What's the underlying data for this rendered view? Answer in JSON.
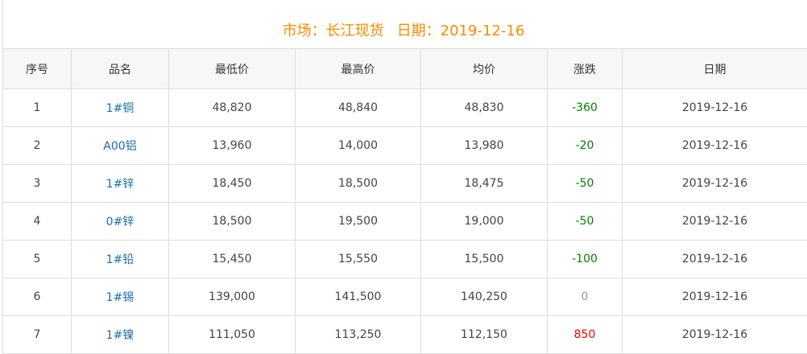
{
  "title": {
    "market": "市场：长江现货",
    "date": "日期：2019-12-16"
  },
  "headers": [
    "序号",
    "品名",
    "最低价",
    "最高价",
    "均价",
    "涨跌",
    "日期"
  ],
  "colors": {
    "title": "#ff8a00",
    "name": "#1a6fa8",
    "down": "#008000",
    "up": "#ff0000",
    "flat": "#999999"
  },
  "rows": [
    {
      "no": "1",
      "name": "1#铜",
      "low": "48,820",
      "high": "48,840",
      "avg": "48,830",
      "change": "-360",
      "date": "2019-12-16"
    },
    {
      "no": "2",
      "name": "A00铝",
      "low": "13,960",
      "high": "14,000",
      "avg": "13,980",
      "change": "-20",
      "date": "2019-12-16"
    },
    {
      "no": "3",
      "name": "1#锌",
      "low": "18,450",
      "high": "18,500",
      "avg": "18,475",
      "change": "-50",
      "date": "2019-12-16"
    },
    {
      "no": "4",
      "name": "0#锌",
      "low": "18,500",
      "high": "19,500",
      "avg": "19,000",
      "change": "-50",
      "date": "2019-12-16"
    },
    {
      "no": "5",
      "name": "1#铅",
      "low": "15,450",
      "high": "15,550",
      "avg": "15,500",
      "change": "-100",
      "date": "2019-12-16"
    },
    {
      "no": "6",
      "name": "1#锡",
      "low": "139,000",
      "high": "141,500",
      "avg": "140,250",
      "change": "0",
      "date": "2019-12-16"
    },
    {
      "no": "7",
      "name": "1#镍",
      "low": "111,050",
      "high": "113,250",
      "avg": "112,150",
      "change": "850",
      "date": "2019-12-16"
    }
  ]
}
